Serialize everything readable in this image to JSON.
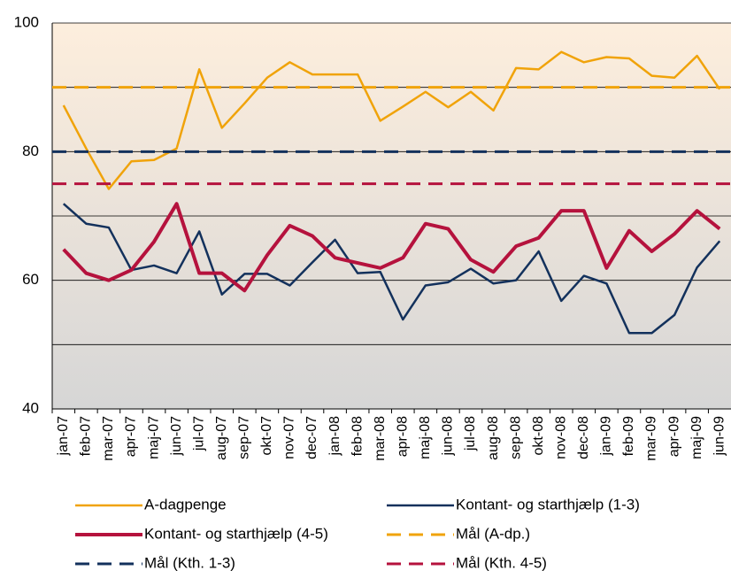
{
  "chart_data": {
    "type": "line",
    "categories": [
      "jan-07",
      "feb-07",
      "mar-07",
      "apr-07",
      "maj-07",
      "jun-07",
      "jul-07",
      "aug-07",
      "sep-07",
      "okt-07",
      "nov-07",
      "dec-07",
      "jan-08",
      "feb-08",
      "mar-08",
      "apr-08",
      "maj-08",
      "jun-08",
      "jul-08",
      "aug-08",
      "sep-08",
      "okt-08",
      "nov-08",
      "dec-08",
      "jan-09",
      "feb-09",
      "mar-09",
      "apr-09",
      "maj-09",
      "jun-09"
    ],
    "series": [
      {
        "name": "A-dagpenge",
        "color": "#f0a30a",
        "values": [
          87.2,
          80.5,
          74.2,
          78.5,
          78.7,
          80.5,
          92.8,
          83.7,
          87.5,
          91.5,
          93.9,
          92,
          92,
          92,
          84.8,
          87,
          89.3,
          86.9,
          89.3,
          86.4,
          93,
          92.8,
          95.5,
          93.9,
          94.7,
          94.5,
          91.8,
          91.5,
          94.9,
          89.7
        ]
      },
      {
        "name": "Kontant- og starthjælp (1-3)",
        "color": "#13315c",
        "values": [
          71.9,
          68.8,
          68.2,
          61.6,
          62.3,
          61.1,
          67.6,
          57.8,
          61,
          61,
          59.2,
          62.8,
          66.3,
          61.1,
          61.3,
          53.9,
          59.2,
          59.7,
          61.8,
          59.5,
          60,
          64.5,
          56.8,
          60.7,
          59.5,
          51.8,
          51.8,
          54.6,
          62,
          66.1
        ]
      },
      {
        "name": "Kontant- og starthjælp (4-5)",
        "color": "#b5123d",
        "values": [
          64.8,
          61.1,
          60,
          61.6,
          66,
          71.9,
          61.1,
          61.1,
          58.4,
          63.9,
          68.5,
          66.9,
          63.5,
          62.7,
          61.9,
          63.5,
          68.8,
          68,
          63.2,
          61.3,
          65.3,
          66.6,
          70.8,
          70.8,
          61.9,
          67.7,
          64.5,
          67.2,
          70.8,
          68
        ]
      },
      {
        "name": "Mål (A-dp.)",
        "color": "#f0a30a",
        "style": "dashed",
        "value": 90
      },
      {
        "name": "Mål (Kth. 1-3)",
        "color": "#13315c",
        "style": "dashed",
        "value": 80
      },
      {
        "name": "Mål (Kth. 4-5)",
        "color": "#b5123d",
        "style": "dashed",
        "value": 75
      }
    ],
    "ylim": [
      40,
      100
    ],
    "yticks": [
      40,
      60,
      80,
      100
    ],
    "y_minor_ticks": [
      50,
      70,
      90
    ],
    "grid": true
  }
}
